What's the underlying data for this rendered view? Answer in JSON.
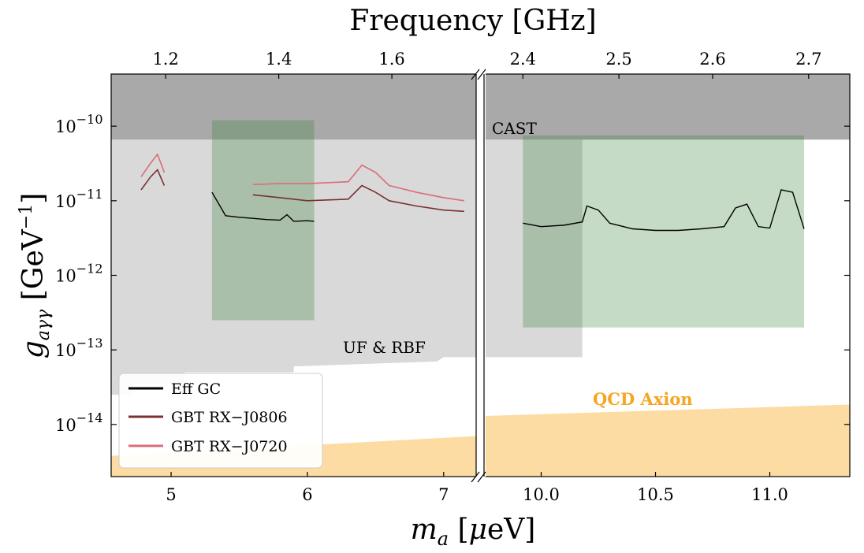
{
  "chart_data": {
    "type": "line",
    "xlabel": "m_a [μeV]",
    "ylabel": "g_aγγ [GeV^-1]",
    "top_xlabel": "Frequency [GHz]",
    "yscale": "log",
    "ylim": [
      2e-15,
      5e-10
    ],
    "yticks": [
      {
        "value": 1e-10,
        "base": "10",
        "exp": "−10"
      },
      {
        "value": 1e-11,
        "base": "10",
        "exp": "−11"
      },
      {
        "value": 1e-12,
        "base": "10",
        "exp": "−12"
      },
      {
        "value": 1e-13,
        "base": "10",
        "exp": "−13"
      },
      {
        "value": 1e-14,
        "base": "10",
        "exp": "−14"
      }
    ],
    "panels": [
      {
        "name": "left",
        "xlim": [
          4.56,
          7.25
        ],
        "xticks": [
          {
            "value": 5,
            "label": "5"
          },
          {
            "value": 6,
            "label": "6"
          },
          {
            "value": 7,
            "label": "7"
          }
        ],
        "top_ticks": [
          {
            "value": 4.96,
            "label": "1.2"
          },
          {
            "value": 5.79,
            "label": "1.4"
          },
          {
            "value": 6.62,
            "label": "1.6"
          }
        ],
        "series": [
          {
            "name": "Eff GC",
            "color": "#000000",
            "x": [
              5.3,
              5.4,
              5.5,
              5.6,
              5.7,
              5.8,
              5.85,
              5.9,
              6.0,
              6.05
            ],
            "y": [
              1.3e-11,
              6.3e-12,
              6e-12,
              5.8e-12,
              5.6e-12,
              5.5e-12,
              6.5e-12,
              5.3e-12,
              5.4e-12,
              5.3e-12
            ],
            "band": [
              2.5e-13,
              1.2e-10
            ]
          },
          {
            "name": "GBT RX−J0806",
            "color": "#7a3030",
            "x": [
              4.78,
              4.85,
              4.9,
              4.95,
              5.6,
              5.8,
              6.0,
              6.3,
              6.4,
              6.5,
              6.6,
              6.8,
              7.0,
              7.15
            ],
            "y": [
              1.4e-11,
              2.1e-11,
              2.6e-11,
              1.6e-11,
              1.2e-11,
              1.1e-11,
              1e-11,
              1.05e-11,
              1.6e-11,
              1.3e-11,
              1e-11,
              8.5e-12,
              7.5e-12,
              7.2e-12
            ]
          },
          {
            "name": "GBT RX−J0720",
            "color": "#d96d78",
            "x": [
              4.78,
              4.85,
              4.9,
              4.95,
              5.6,
              5.8,
              6.0,
              6.3,
              6.4,
              6.5,
              6.6,
              6.8,
              7.0,
              7.15
            ],
            "y": [
              2.1e-11,
              3.2e-11,
              4.2e-11,
              2.4e-11,
              1.65e-11,
              1.7e-11,
              1.7e-11,
              1.8e-11,
              3e-11,
              2.4e-11,
              1.6e-11,
              1.3e-11,
              1.1e-11,
              1e-11
            ]
          }
        ]
      },
      {
        "name": "right",
        "xlim": [
          9.75,
          11.35
        ],
        "xticks": [
          {
            "value": 10.0,
            "label": "10.0"
          },
          {
            "value": 10.5,
            "label": "10.5"
          },
          {
            "value": 11.0,
            "label": "11.0"
          }
        ],
        "top_ticks": [
          {
            "value": 9.92,
            "label": "2.4"
          },
          {
            "value": 10.34,
            "label": "2.5"
          },
          {
            "value": 10.75,
            "label": "2.6"
          },
          {
            "value": 11.17,
            "label": "2.7"
          }
        ],
        "series": [
          {
            "name": "Eff GC",
            "color": "#000000",
            "x": [
              9.92,
              10.0,
              10.1,
              10.18,
              10.2,
              10.25,
              10.3,
              10.4,
              10.5,
              10.6,
              10.7,
              10.8,
              10.85,
              10.9,
              10.95,
              11.0,
              11.05,
              11.1,
              11.15
            ],
            "y": [
              5e-12,
              4.5e-12,
              4.7e-12,
              5.2e-12,
              8.5e-12,
              7.5e-12,
              5e-12,
              4.2e-12,
              4e-12,
              4e-12,
              4.2e-12,
              4.5e-12,
              8e-12,
              9e-12,
              4.5e-12,
              4.3e-12,
              1.4e-11,
              1.3e-11,
              4.2e-12
            ],
            "band": [
              2e-13,
              7.5e-11
            ]
          }
        ]
      }
    ],
    "regions": [
      {
        "name": "CAST",
        "label": "CAST",
        "color": "#a9a9a9",
        "y_low": 6.6e-11
      },
      {
        "name": "UF & RBF",
        "label": "UF & RBF",
        "color": "#d9d9d9"
      },
      {
        "name": "QCD Axion",
        "label": "QCD Axion",
        "color": "#fcdca3",
        "label_color": "#f5a623"
      }
    ],
    "legend": {
      "position": "lower-left",
      "entries": [
        {
          "label": "Eff GC",
          "color": "#000000"
        },
        {
          "label": "GBT RX−J0806",
          "color": "#7a3030"
        },
        {
          "label": "GBT RX−J0720",
          "color": "#d96d78"
        }
      ]
    },
    "grid": false
  }
}
